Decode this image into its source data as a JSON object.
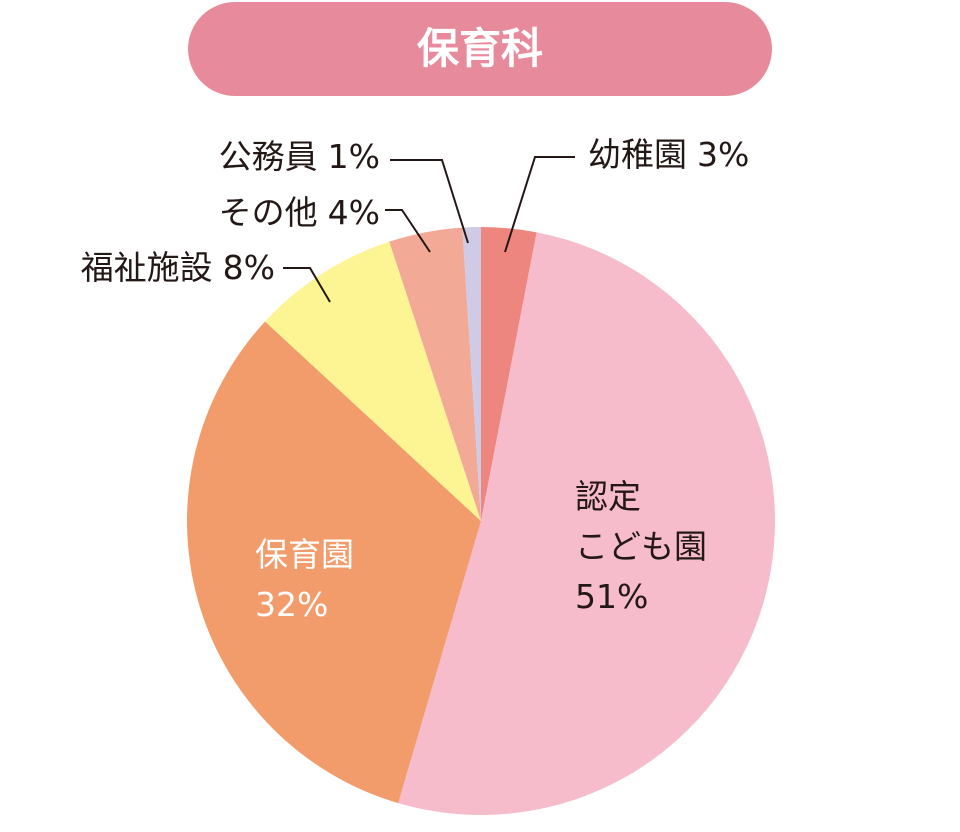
{
  "chart_data": {
    "type": "pie",
    "title": "保育科",
    "categories": [
      "幼稚園",
      "認定\nこども園",
      "保育園",
      "福祉施設",
      "その他",
      "公務員"
    ],
    "values": [
      3,
      51,
      32,
      8,
      4,
      1
    ],
    "value_labels": [
      "3%",
      "51%",
      "32%",
      "8%",
      "4%",
      "1%"
    ],
    "colors": [
      "#ee8680",
      "#f7bccb",
      "#f29c6b",
      "#fdf493",
      "#f2a995",
      "#cfcbe6"
    ]
  }
}
